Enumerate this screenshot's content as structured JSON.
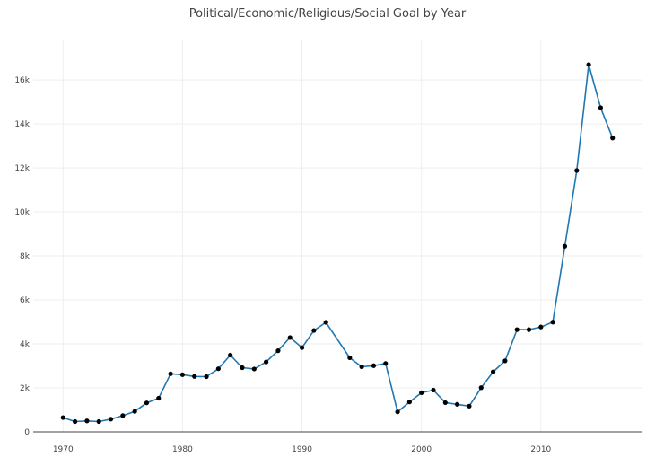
{
  "chart_data": {
    "type": "line",
    "title": "Political/Economic/Religious/Social Goal by Year",
    "xlabel": "",
    "ylabel": "",
    "xlim": [
      1967.5,
      2018.5
    ],
    "ylim": [
      0,
      17800
    ],
    "grid": true,
    "legend": "none",
    "line_color": "#1f77b4",
    "marker_color": "#000000",
    "x_ticks": [
      {
        "value": 1970,
        "label": "1970"
      },
      {
        "value": 1980,
        "label": "1980"
      },
      {
        "value": 1990,
        "label": "1990"
      },
      {
        "value": 2000,
        "label": "2000"
      },
      {
        "value": 2010,
        "label": "2010"
      }
    ],
    "y_ticks": [
      {
        "value": 0,
        "label": "0"
      },
      {
        "value": 2000,
        "label": "2k"
      },
      {
        "value": 4000,
        "label": "4k"
      },
      {
        "value": 6000,
        "label": "6k"
      },
      {
        "value": 8000,
        "label": "8k"
      },
      {
        "value": 10000,
        "label": "10k"
      },
      {
        "value": 12000,
        "label": "12k"
      },
      {
        "value": 14000,
        "label": "14k"
      },
      {
        "value": 16000,
        "label": "16k"
      }
    ],
    "x": [
      1970,
      1971,
      1972,
      1973,
      1974,
      1975,
      1976,
      1977,
      1978,
      1979,
      1980,
      1981,
      1982,
      1983,
      1984,
      1985,
      1986,
      1987,
      1988,
      1989,
      1990,
      1991,
      1992,
      1994,
      1995,
      1996,
      1997,
      1998,
      1999,
      2000,
      2001,
      2002,
      2003,
      2004,
      2005,
      2006,
      2007,
      2008,
      2009,
      2010,
      2011,
      2012,
      2013,
      2014,
      2015,
      2016
    ],
    "y": [
      650,
      470,
      500,
      470,
      580,
      740,
      930,
      1320,
      1530,
      2640,
      2600,
      2520,
      2510,
      2870,
      3490,
      2920,
      2860,
      3180,
      3690,
      4290,
      3830,
      4610,
      4980,
      3370,
      2960,
      3010,
      3110,
      910,
      1360,
      1780,
      1900,
      1330,
      1250,
      1170,
      2010,
      2730,
      3230,
      4650,
      4650,
      4770,
      4990,
      8440,
      11880,
      16700,
      14740,
      13360
    ]
  }
}
